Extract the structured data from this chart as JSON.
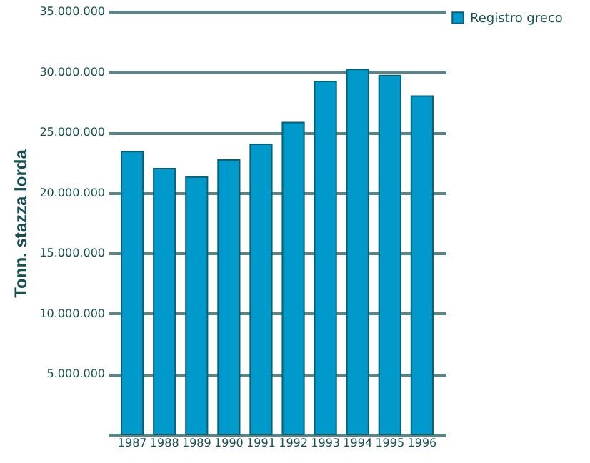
{
  "chart_data": {
    "type": "bar",
    "ylabel": "Tonn. stazza lorda",
    "categories": [
      "1987",
      "1988",
      "1989",
      "1990",
      "1991",
      "1992",
      "1993",
      "1994",
      "1995",
      "1996"
    ],
    "series": [
      {
        "name": "Registro greco",
        "color": "#0099cc",
        "values": [
          23400000,
          22000000,
          21300000,
          22700000,
          24000000,
          25800000,
          29200000,
          30200000,
          29700000,
          28000000
        ]
      }
    ],
    "ylim": [
      0,
      35000000
    ],
    "yticks": [
      {
        "value": 0,
        "label": null
      },
      {
        "value": 5000000,
        "label": "5.000.000"
      },
      {
        "value": 10000000,
        "label": "10.000.000"
      },
      {
        "value": 15000000,
        "label": "15.000.000"
      },
      {
        "value": 20000000,
        "label": "20.000.000"
      },
      {
        "value": 25000000,
        "label": "25.000.000"
      },
      {
        "value": 30000000,
        "label": "30.000.000"
      },
      {
        "value": 35000000,
        "label": "35.000.000"
      }
    ],
    "grid": "y",
    "legend": "right"
  }
}
